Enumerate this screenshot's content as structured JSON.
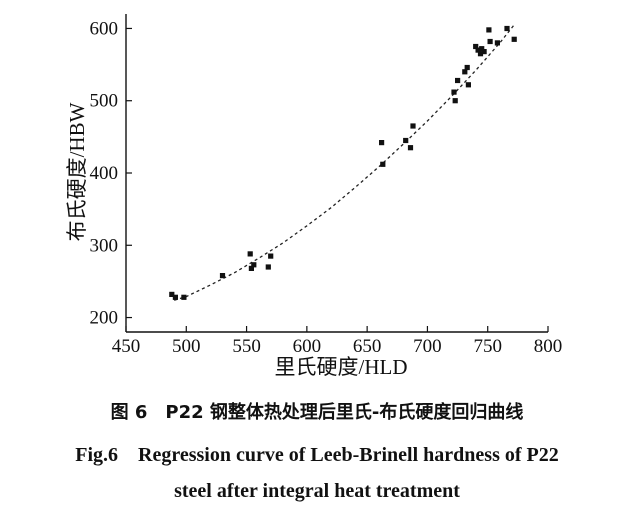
{
  "chart_data": {
    "type": "scatter",
    "xlabel": "里氏硬度/HLD",
    "ylabel": "布氏硬度/HBW",
    "xlim": [
      450,
      800
    ],
    "ylim": [
      180,
      620
    ],
    "x_ticks": [
      "450",
      "500",
      "550",
      "600",
      "650",
      "700",
      "750",
      "800"
    ],
    "y_ticks": [
      "200",
      "300",
      "400",
      "500",
      "600"
    ],
    "grid": false,
    "points": [
      {
        "x": 488,
        "y": 232
      },
      {
        "x": 491,
        "y": 228
      },
      {
        "x": 498,
        "y": 228
      },
      {
        "x": 530,
        "y": 258
      },
      {
        "x": 553,
        "y": 288
      },
      {
        "x": 554,
        "y": 268
      },
      {
        "x": 556,
        "y": 273
      },
      {
        "x": 568,
        "y": 270
      },
      {
        "x": 570,
        "y": 285
      },
      {
        "x": 662,
        "y": 442
      },
      {
        "x": 663,
        "y": 412
      },
      {
        "x": 682,
        "y": 445
      },
      {
        "x": 686,
        "y": 435
      },
      {
        "x": 688,
        "y": 465
      },
      {
        "x": 722,
        "y": 512
      },
      {
        "x": 723,
        "y": 500
      },
      {
        "x": 725,
        "y": 528
      },
      {
        "x": 731,
        "y": 540
      },
      {
        "x": 733,
        "y": 546
      },
      {
        "x": 734,
        "y": 522
      },
      {
        "x": 740,
        "y": 575
      },
      {
        "x": 742,
        "y": 570
      },
      {
        "x": 744,
        "y": 565
      },
      {
        "x": 745,
        "y": 572
      },
      {
        "x": 747,
        "y": 568
      },
      {
        "x": 751,
        "y": 598
      },
      {
        "x": 752,
        "y": 582
      },
      {
        "x": 758,
        "y": 580
      },
      {
        "x": 766,
        "y": 600
      },
      {
        "x": 772,
        "y": 585
      }
    ],
    "fit_curve": {
      "style": "dashed",
      "x": [
        490,
        500,
        520,
        540,
        560,
        580,
        600,
        620,
        640,
        660,
        680,
        700,
        720,
        740,
        760,
        772
      ],
      "y": [
        224,
        229,
        245,
        262,
        282,
        303,
        327,
        352,
        380,
        409,
        440,
        472,
        506,
        542,
        580,
        605
      ]
    }
  },
  "caption": {
    "cn": "图 6　P22 钢整体热处理后里氏-布氏硬度回归曲线",
    "en_line1": "Fig.6　Regression curve of Leeb-Brinell hardness of P22",
    "en_line2": "steel after integral heat treatment"
  }
}
